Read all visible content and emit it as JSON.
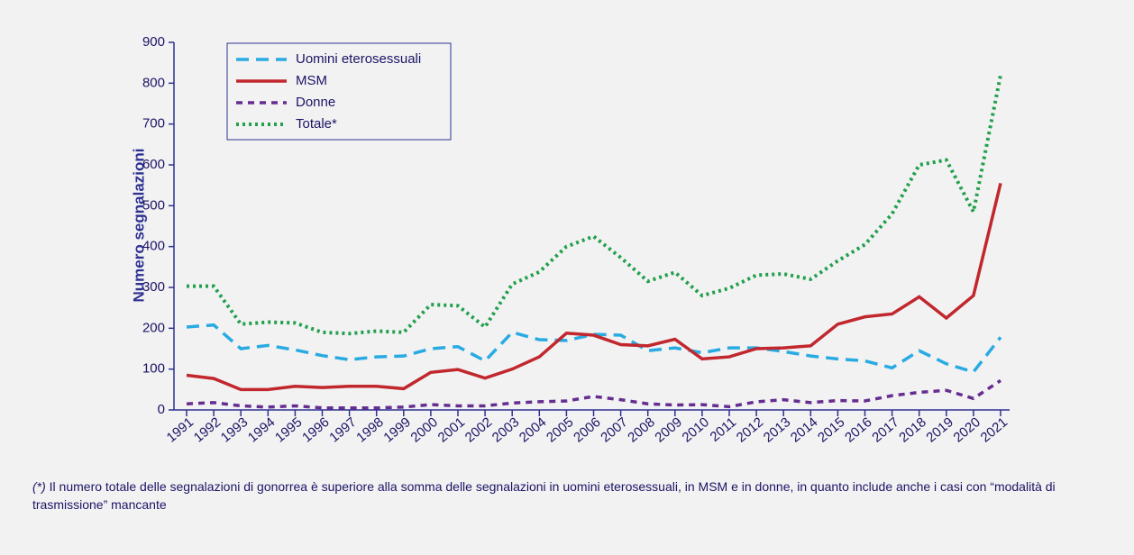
{
  "chart_data": {
    "type": "line",
    "ylabel": "Numero segnalazioni",
    "categories": [
      "1991",
      "1992",
      "1993",
      "1994",
      "1995",
      "1996",
      "1997",
      "1998",
      "1999",
      "2000",
      "2001",
      "2002",
      "2003",
      "2004",
      "2005",
      "2006",
      "2007",
      "2008",
      "2009",
      "2010",
      "2011",
      "2012",
      "2013",
      "2014",
      "2015",
      "2016",
      "2017",
      "2018",
      "2019",
      "2020",
      "2021"
    ],
    "ylim": [
      0,
      900
    ],
    "yticks": [
      0,
      100,
      200,
      300,
      400,
      500,
      600,
      700,
      800,
      900
    ],
    "legend": "upper left",
    "series": [
      {
        "name": "Uomini eterosessuali",
        "color": "#29abe2",
        "style": "dashed",
        "values": [
          203,
          208,
          150,
          158,
          147,
          133,
          123,
          130,
          132,
          150,
          155,
          120,
          190,
          172,
          170,
          185,
          183,
          145,
          152,
          140,
          152,
          152,
          143,
          132,
          125,
          120,
          103,
          145,
          113,
          93,
          178
        ]
      },
      {
        "name": "MSM",
        "color": "#c1272d",
        "style": "solid",
        "values": [
          85,
          77,
          50,
          50,
          58,
          55,
          58,
          58,
          52,
          92,
          99,
          78,
          100,
          130,
          188,
          183,
          160,
          157,
          173,
          125,
          130,
          150,
          152,
          157,
          210,
          228,
          235,
          277,
          225,
          280,
          555
        ]
      },
      {
        "name": "Donne",
        "color": "#662d91",
        "style": "dashed-short",
        "values": [
          15,
          18,
          10,
          7,
          10,
          5,
          5,
          5,
          7,
          13,
          10,
          10,
          17,
          20,
          22,
          33,
          25,
          15,
          12,
          13,
          8,
          20,
          25,
          18,
          23,
          22,
          35,
          43,
          48,
          28,
          72
        ]
      },
      {
        "name": "Totale*",
        "color": "#22a04b",
        "style": "dotted",
        "values": [
          303,
          303,
          210,
          215,
          213,
          190,
          187,
          193,
          190,
          258,
          255,
          203,
          308,
          338,
          400,
          425,
          373,
          315,
          337,
          280,
          298,
          330,
          333,
          320,
          365,
          405,
          480,
          600,
          612,
          485,
          820
        ]
      }
    ]
  },
  "footnote_marker": "(*)",
  "footnote": " Il numero totale delle segnalazioni di gonorrea è superiore alla somma delle segnalazioni in uomini eterosessuali, in MSM e in donne, in quanto include anche i casi con “modalità di trasmissione” mancante"
}
